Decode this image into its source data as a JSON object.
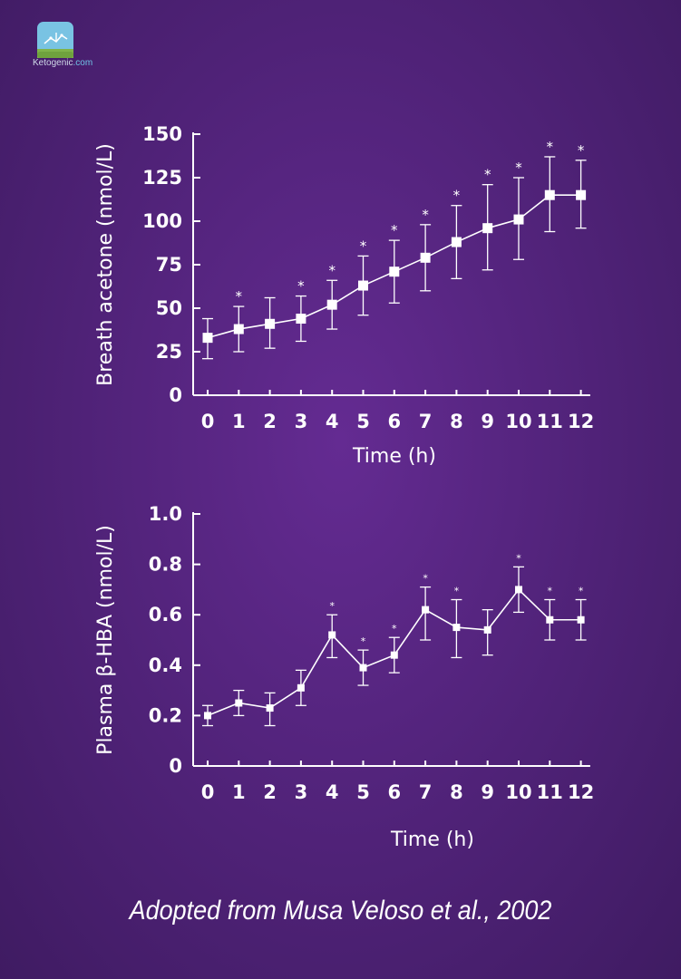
{
  "logo": {
    "name_main": "Ketogenic",
    "name_suffix": ".com",
    "icon": "molecule-logo-icon"
  },
  "source_note": "Adopted from Musa Veloso et al., 2002",
  "colors": {
    "background": "#552480",
    "foreground": "#ffffff"
  },
  "chart_data": [
    {
      "type": "line",
      "xlabel": "Time (h)",
      "ylabel": "Breath acetone (nmol/L)",
      "x": [
        0,
        1,
        2,
        3,
        4,
        5,
        6,
        7,
        8,
        9,
        10,
        11,
        12
      ],
      "x_ticks": [
        "0",
        "1",
        "2",
        "3",
        "4",
        "5",
        "6",
        "7",
        "8",
        "9",
        "10",
        "11",
        "12"
      ],
      "y_ticks": [
        "0",
        "25",
        "50",
        "75",
        "100",
        "125",
        "150"
      ],
      "ylim": [
        0,
        150
      ],
      "series": [
        {
          "values": [
            33,
            38,
            41,
            44,
            52,
            63,
            71,
            79,
            88,
            96,
            101,
            115,
            115
          ],
          "error_upper": [
            44,
            51,
            56,
            57,
            66,
            80,
            89,
            98,
            109,
            121,
            125,
            137,
            135
          ],
          "error_lower": [
            21,
            25,
            27,
            31,
            38,
            46,
            53,
            60,
            67,
            72,
            78,
            94,
            96
          ],
          "significant": [
            false,
            true,
            false,
            true,
            true,
            true,
            true,
            true,
            true,
            true,
            true,
            true,
            true
          ],
          "significance_marker": "*",
          "marker": "square"
        }
      ],
      "grid": false
    },
    {
      "type": "line",
      "xlabel": "Time (h)",
      "ylabel": "Plasma β-HBA (nmol/L)",
      "x": [
        0,
        1,
        2,
        3,
        4,
        5,
        6,
        7,
        8,
        9,
        10,
        11,
        12
      ],
      "x_ticks": [
        "0",
        "1",
        "2",
        "3",
        "4",
        "5",
        "6",
        "7",
        "8",
        "9",
        "10",
        "11",
        "12"
      ],
      "y_ticks": [
        "0",
        "0.2",
        "0.4",
        "0.6",
        "0.8",
        "1.0"
      ],
      "ylim": [
        0,
        1.0
      ],
      "series": [
        {
          "values": [
            0.2,
            0.25,
            0.23,
            0.31,
            0.52,
            0.39,
            0.44,
            0.62,
            0.55,
            0.54,
            0.7,
            0.58,
            0.58
          ],
          "error_upper": [
            0.24,
            0.3,
            0.29,
            0.38,
            0.6,
            0.46,
            0.51,
            0.71,
            0.66,
            0.62,
            0.79,
            0.66,
            0.66
          ],
          "error_lower": [
            0.16,
            0.2,
            0.16,
            0.24,
            0.43,
            0.32,
            0.37,
            0.5,
            0.43,
            0.44,
            0.61,
            0.5,
            0.5
          ],
          "significant": [
            false,
            false,
            false,
            false,
            true,
            true,
            true,
            true,
            true,
            false,
            true,
            true,
            true
          ],
          "significance_marker": "*",
          "marker": "square"
        }
      ],
      "grid": false
    }
  ]
}
